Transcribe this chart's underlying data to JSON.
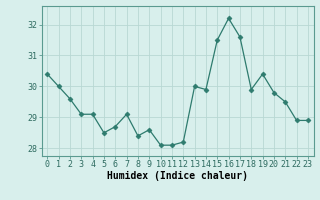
{
  "x": [
    0,
    1,
    2,
    3,
    4,
    5,
    6,
    7,
    8,
    9,
    10,
    11,
    12,
    13,
    14,
    15,
    16,
    17,
    18,
    19,
    20,
    21,
    22,
    23
  ],
  "y": [
    30.4,
    30.0,
    29.6,
    29.1,
    29.1,
    28.5,
    28.7,
    29.1,
    28.4,
    28.6,
    28.1,
    28.1,
    28.2,
    30.0,
    29.9,
    31.5,
    32.2,
    31.6,
    29.9,
    30.4,
    29.8,
    29.5,
    28.9,
    28.9
  ],
  "line_color": "#2e7b6e",
  "marker": "D",
  "marker_size": 2.5,
  "bg_color": "#d8efec",
  "grid_color": "#b8d8d4",
  "xlabel": "Humidex (Indice chaleur)",
  "ylim": [
    27.75,
    32.6
  ],
  "xlim": [
    -0.5,
    23.5
  ],
  "yticks": [
    28,
    29,
    30,
    31,
    32
  ],
  "xticks": [
    0,
    1,
    2,
    3,
    4,
    5,
    6,
    7,
    8,
    9,
    10,
    11,
    12,
    13,
    14,
    15,
    16,
    17,
    18,
    19,
    20,
    21,
    22,
    23
  ],
  "tick_fontsize": 6,
  "xlabel_fontsize": 7
}
